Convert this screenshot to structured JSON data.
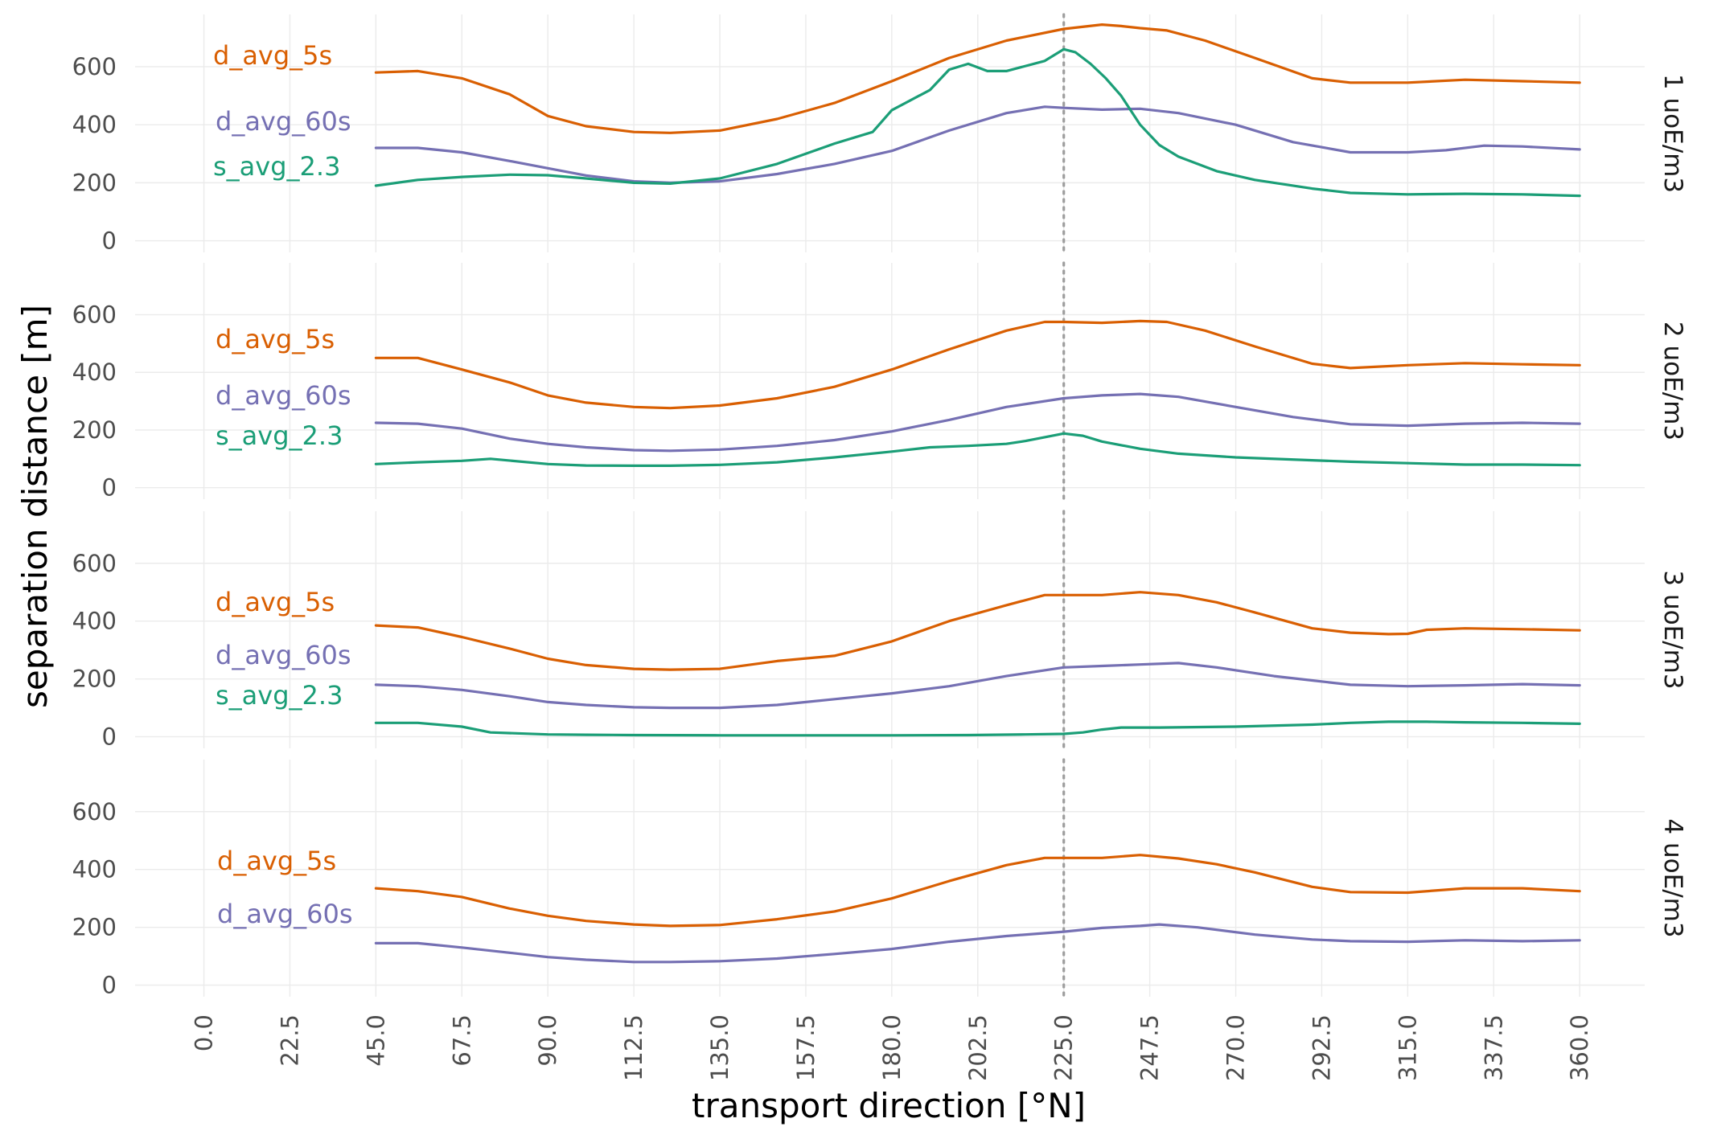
{
  "chart_data": {
    "type": "line",
    "xlabel": "transport direction [°N]",
    "ylabel": "separation distance [m]",
    "x_ticks": [
      "0.0",
      "22.5",
      "45.0",
      "67.5",
      "90.0",
      "112.5",
      "135.0",
      "157.5",
      "180.0",
      "202.5",
      "225.0",
      "247.5",
      "270.0",
      "292.5",
      "315.0",
      "337.5",
      "360.0"
    ],
    "y_ticks": [
      "0",
      "200",
      "400",
      "600"
    ],
    "xlim": [
      -18,
      377
    ],
    "ylim": [
      -40,
      780
    ],
    "reference_line_x": 225,
    "colors": {
      "d_avg_5s": "#d95f02",
      "d_avg_60s": "#7570b3",
      "s_avg_2.3": "#1b9e77",
      "reference": "#9e9e9e",
      "grid": "#ebebeb"
    },
    "panels": [
      {
        "strip": "1 uoE/m3",
        "series": [
          {
            "name": "d_avg_5s",
            "x": [
              45,
              56,
              67.5,
              80,
              90,
              100,
              112.5,
              122,
              135,
              150,
              165,
              180,
              195,
              210,
              225,
              235,
              240,
              245,
              252,
              262,
              275,
              290,
              300,
              315,
              330,
              345,
              360
            ],
            "y": [
              580,
              585,
              560,
              505,
              430,
              395,
              375,
              372,
              380,
              420,
              475,
              550,
              630,
              690,
              730,
              745,
              740,
              733,
              725,
              690,
              630,
              560,
              545,
              545,
              555,
              550,
              545
            ]
          },
          {
            "name": "d_avg_60s",
            "x": [
              45,
              56,
              67.5,
              80,
              90,
              100,
              112.5,
              122,
              135,
              150,
              165,
              180,
              195,
              210,
              220,
              225,
              235,
              245,
              255,
              270,
              285,
              300,
              315,
              325,
              335,
              345,
              360
            ],
            "y": [
              320,
              320,
              305,
              275,
              250,
              225,
              205,
              200,
              205,
              230,
              265,
              310,
              380,
              440,
              462,
              458,
              452,
              455,
              440,
              400,
              340,
              305,
              305,
              312,
              328,
              325,
              315
            ]
          },
          {
            "name": "s_avg_2.3",
            "x": [
              45,
              56,
              67.5,
              80,
              90,
              100,
              112.5,
              122,
              135,
              150,
              165,
              175,
              180,
              190,
              195,
              200,
              205,
              210,
              220,
              225,
              228,
              232,
              236,
              240,
              245,
              250,
              255,
              265,
              275,
              290,
              300,
              315,
              330,
              345,
              360
            ],
            "y": [
              190,
              210,
              220,
              228,
              226,
              215,
              200,
              197,
              215,
              265,
              335,
              375,
              450,
              520,
              590,
              610,
              585,
              585,
              620,
              660,
              650,
              610,
              560,
              500,
              400,
              330,
              290,
              240,
              210,
              180,
              165,
              160,
              162,
              160,
              155
            ]
          }
        ]
      },
      {
        "strip": "2 uoE/m3",
        "series": [
          {
            "name": "d_avg_5s",
            "x": [
              45,
              56,
              67.5,
              80,
              90,
              100,
              112.5,
              122,
              135,
              150,
              165,
              180,
              195,
              210,
              220,
              225,
              235,
              245,
              252,
              262,
              275,
              290,
              300,
              315,
              330,
              345,
              360
            ],
            "y": [
              450,
              450,
              410,
              365,
              320,
              295,
              280,
              276,
              285,
              310,
              350,
              410,
              480,
              545,
              575,
              575,
              572,
              578,
              575,
              545,
              490,
              430,
              415,
              425,
              432,
              428,
              425
            ]
          },
          {
            "name": "d_avg_60s",
            "x": [
              45,
              56,
              67.5,
              80,
              90,
              100,
              112.5,
              122,
              135,
              150,
              165,
              180,
              195,
              210,
              225,
              235,
              245,
              255,
              270,
              285,
              300,
              315,
              330,
              345,
              360
            ],
            "y": [
              225,
              222,
              205,
              170,
              152,
              140,
              130,
              128,
              132,
              145,
              165,
              195,
              235,
              280,
              310,
              320,
              325,
              315,
              280,
              245,
              220,
              215,
              222,
              225,
              222
            ]
          },
          {
            "name": "s_avg_2.3",
            "x": [
              45,
              56,
              67.5,
              75,
              90,
              100,
              112.5,
              122,
              135,
              150,
              165,
              180,
              190,
              200,
              210,
              215,
              220,
              225,
              230,
              235,
              245,
              255,
              270,
              290,
              300,
              315,
              330,
              345,
              360
            ],
            "y": [
              82,
              88,
              93,
              100,
              82,
              77,
              76,
              76,
              79,
              88,
              105,
              125,
              140,
              145,
              152,
              162,
              175,
              188,
              180,
              160,
              135,
              118,
              105,
              95,
              90,
              85,
              80,
              80,
              78
            ]
          }
        ]
      },
      {
        "strip": "3 uoE/m3",
        "series": [
          {
            "name": "d_avg_5s",
            "x": [
              45,
              56,
              67.5,
              80,
              90,
              100,
              112.5,
              122,
              135,
              150,
              165,
              180,
              195,
              210,
              220,
              225,
              235,
              245,
              255,
              265,
              275,
              290,
              300,
              310,
              315,
              320,
              330,
              345,
              360
            ],
            "y": [
              385,
              378,
              345,
              305,
              270,
              248,
              235,
              232,
              235,
              262,
              280,
              330,
              400,
              455,
              490,
              490,
              490,
              500,
              490,
              465,
              430,
              375,
              360,
              355,
              356,
              370,
              375,
              372,
              368
            ]
          },
          {
            "name": "d_avg_60s",
            "x": [
              45,
              56,
              67.5,
              80,
              90,
              100,
              112.5,
              122,
              135,
              150,
              165,
              180,
              195,
              210,
              225,
              235,
              245,
              255,
              265,
              280,
              290,
              300,
              315,
              330,
              345,
              360
            ],
            "y": [
              180,
              175,
              162,
              140,
              120,
              110,
              102,
              100,
              100,
              110,
              130,
              150,
              175,
              210,
              240,
              245,
              250,
              255,
              240,
              210,
              195,
              180,
              175,
              178,
              182,
              178
            ]
          },
          {
            "name": "s_avg_2.3",
            "x": [
              45,
              56,
              67.5,
              75,
              90,
              100,
              112.5,
              135,
              160,
              180,
              200,
              215,
              225,
              230,
              235,
              240,
              250,
              270,
              290,
              300,
              310,
              320,
              330,
              345,
              360
            ],
            "y": [
              48,
              48,
              35,
              15,
              8,
              7,
              6,
              5,
              5,
              5,
              6,
              8,
              10,
              15,
              25,
              32,
              32,
              35,
              42,
              48,
              52,
              52,
              50,
              48,
              45
            ]
          }
        ]
      },
      {
        "strip": "4 uoE/m3",
        "series": [
          {
            "name": "d_avg_5s",
            "x": [
              45,
              56,
              67.5,
              80,
              90,
              100,
              112.5,
              122,
              135,
              150,
              165,
              180,
              195,
              210,
              220,
              225,
              235,
              245,
              255,
              265,
              275,
              290,
              300,
              315,
              330,
              345,
              360
            ],
            "y": [
              335,
              325,
              305,
              265,
              240,
              222,
              210,
              205,
              208,
              228,
              255,
              300,
              360,
              415,
              440,
              440,
              440,
              450,
              438,
              418,
              390,
              340,
              322,
              320,
              335,
              335,
              325
            ]
          },
          {
            "name": "d_avg_60s",
            "x": [
              45,
              56,
              67.5,
              80,
              90,
              100,
              112.5,
              122,
              135,
              150,
              165,
              180,
              195,
              210,
              225,
              235,
              245,
              250,
              260,
              275,
              290,
              300,
              315,
              330,
              345,
              360
            ],
            "y": [
              145,
              145,
              130,
              112,
              97,
              88,
              80,
              80,
              83,
              92,
              108,
              125,
              150,
              170,
              185,
              198,
              205,
              210,
              200,
              175,
              158,
              152,
              150,
              155,
              152,
              155
            ]
          }
        ]
      }
    ],
    "label_positions_note": "labels placed at start of series"
  }
}
